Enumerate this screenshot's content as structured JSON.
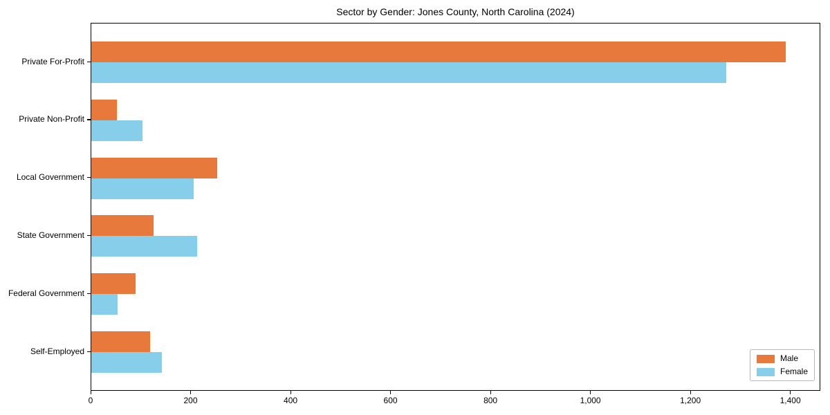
{
  "chart_data": {
    "type": "bar",
    "orientation": "horizontal",
    "title": "Sector by Gender: Jones County, North Carolina (2024)",
    "categories": [
      "Private For-Profit",
      "Private Non-Profit",
      "Local Government",
      "State Government",
      "Federal Government",
      "Self-Employed"
    ],
    "series": [
      {
        "name": "Male",
        "color": "#E8793D",
        "values": [
          1390,
          51,
          252,
          125,
          88,
          117
        ]
      },
      {
        "name": "Female",
        "color": "#87CEEB",
        "values": [
          1271,
          102,
          205,
          212,
          53,
          141
        ]
      }
    ],
    "xlabel": "",
    "ylabel": "",
    "xlim": [
      0,
      1460
    ],
    "xtick_values": [
      0,
      200,
      400,
      600,
      800,
      1000,
      1200,
      1400
    ],
    "xtick_labels": [
      "0",
      "200",
      "400",
      "600",
      "800",
      "1,000",
      "1,200",
      "1,400"
    ],
    "grid": false,
    "legend_position": "lower right",
    "background_color": "#ffffff",
    "axis_color": "#000000"
  }
}
